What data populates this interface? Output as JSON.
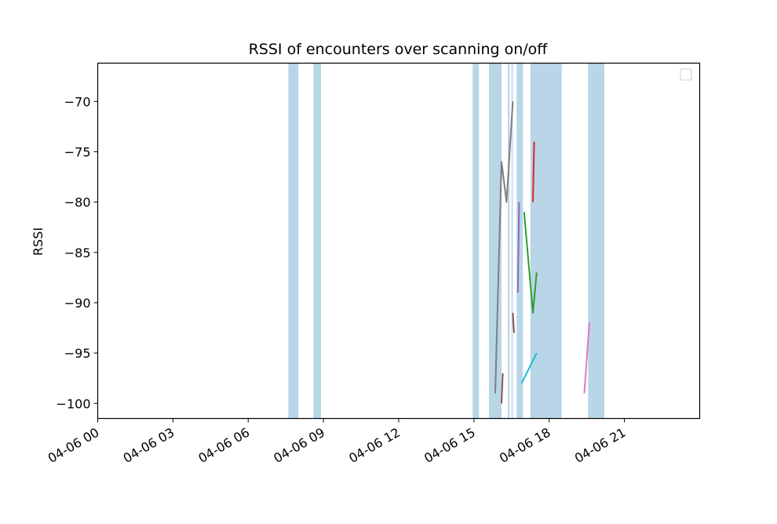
{
  "chart_data": {
    "type": "line",
    "title": "RSSI of encounters over scanning on/off",
    "xlabel": "",
    "ylabel": "RSSI",
    "x_ticks": [
      "04-06 00",
      "04-06 03",
      "04-06 06",
      "04-06 09",
      "04-06 12",
      "04-06 15",
      "04-06 18",
      "04-06 21"
    ],
    "x_tick_hours": [
      0,
      3,
      6,
      9,
      12,
      15,
      18,
      21
    ],
    "xlim_hours": [
      0,
      24
    ],
    "y_ticks": [
      -70,
      -75,
      -80,
      -85,
      -90,
      -95,
      -100
    ],
    "ylim": [
      -101.5,
      -66.2
    ],
    "legend": {
      "placement": "top-right",
      "entries": []
    },
    "scanning_on_intervals_hours": [
      [
        7.6,
        8.0
      ],
      [
        8.6,
        8.9
      ],
      [
        14.95,
        15.2
      ],
      [
        15.6,
        16.1
      ],
      [
        16.35,
        16.42
      ],
      [
        16.5,
        16.55
      ],
      [
        16.7,
        16.95
      ],
      [
        17.25,
        18.5
      ],
      [
        19.55,
        20.2
      ]
    ],
    "series": [
      {
        "color": "#17becf",
        "x": [
          16.9,
          17.5
        ],
        "y": [
          -98,
          -95
        ]
      },
      {
        "color": "#2ca02c",
        "x": [
          17.0,
          17.35,
          17.5
        ],
        "y": [
          -81,
          -91,
          -87
        ]
      },
      {
        "color": "#d62728",
        "x": [
          17.35,
          17.4
        ],
        "y": [
          -80,
          -74
        ]
      },
      {
        "color": "#9467bd",
        "x": [
          16.75,
          16.8
        ],
        "y": [
          -89,
          -80
        ]
      },
      {
        "color": "#8c564b",
        "x": [
          16.1,
          16.15
        ],
        "y": [
          -100,
          -97
        ]
      },
      {
        "color": "#8c564b",
        "x": [
          16.55,
          16.6
        ],
        "y": [
          -91,
          -93
        ]
      },
      {
        "color": "#7f7f7f",
        "x": [
          15.85,
          16.1,
          16.3,
          16.55
        ],
        "y": [
          -99,
          -76,
          -80,
          -70
        ]
      },
      {
        "color": "#e377c2",
        "x": [
          19.4,
          19.6
        ],
        "y": [
          -99,
          -92
        ]
      }
    ]
  }
}
